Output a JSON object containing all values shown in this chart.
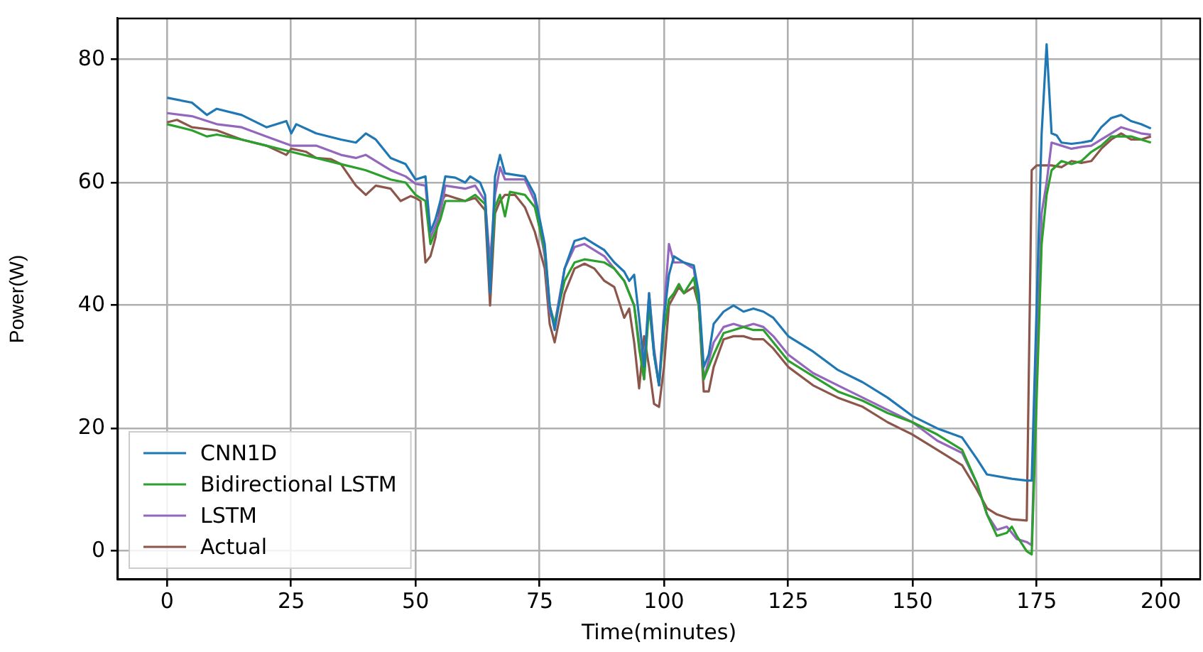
{
  "chart_data": {
    "type": "line",
    "xlabel": "Time(minutes)",
    "ylabel": "Power(W)",
    "xlim": [
      -9.9,
      207.9
    ],
    "ylim": [
      -4.6,
      86.7
    ],
    "xticks": [
      0,
      25,
      50,
      75,
      100,
      125,
      150,
      175,
      200
    ],
    "yticks": [
      0,
      20,
      40,
      60,
      80
    ],
    "grid": true,
    "legend": "bottom left",
    "marker": "none",
    "line_style": "solid",
    "series": [
      {
        "name": "CNN1D",
        "color": "#1f77b4",
        "x": [
          0,
          5,
          8,
          10,
          15,
          20,
          24,
          25,
          26,
          30,
          35,
          38,
          40,
          42,
          45,
          48,
          50,
          52,
          53,
          54,
          55,
          56,
          58,
          60,
          61,
          63,
          64,
          65,
          66,
          67,
          68,
          72,
          74,
          76,
          77,
          78,
          80,
          82,
          84,
          86,
          88,
          90,
          92,
          93,
          94,
          95,
          96,
          97,
          98,
          99,
          100,
          101,
          102,
          104,
          106,
          107,
          108,
          109,
          110,
          112,
          114,
          116,
          118,
          120,
          122,
          125,
          130,
          135,
          140,
          145,
          150,
          155,
          160,
          163,
          165,
          170,
          173,
          174,
          175,
          176,
          177,
          178,
          179,
          180,
          182,
          184,
          186,
          188,
          190,
          192,
          194,
          196,
          198
        ],
        "values": [
          73.8,
          73,
          71,
          72,
          71,
          69,
          70,
          68,
          69.5,
          68,
          67,
          66.5,
          68,
          67,
          64,
          63,
          60.5,
          61,
          52,
          54,
          57,
          61,
          60.8,
          60,
          61,
          60,
          58,
          42,
          61,
          64.5,
          61.5,
          61,
          58,
          50,
          40,
          36,
          46,
          50.5,
          51,
          50,
          49,
          47,
          45.5,
          44,
          45,
          38,
          30,
          42,
          32,
          27,
          38,
          45,
          48,
          47,
          46.5,
          42,
          30,
          32,
          37,
          39,
          40,
          39,
          39.5,
          39,
          38,
          35,
          32.5,
          29.5,
          27.5,
          25,
          22,
          20,
          18.5,
          15,
          12.5,
          11.8,
          11.5,
          11.5,
          40,
          68,
          82.5,
          68,
          67.7,
          66.5,
          66.3,
          66.5,
          66.8,
          69,
          70.5,
          71,
          70,
          69.5,
          68.8
        ]
      },
      {
        "name": "Bidirectional LSTM",
        "color": "#2ca02c",
        "x": [
          0,
          5,
          8,
          10,
          15,
          20,
          25,
          30,
          35,
          40,
          45,
          48,
          50,
          52,
          53,
          54,
          55,
          56,
          60,
          62,
          64,
          65,
          66,
          67,
          68,
          69,
          72,
          74,
          76,
          77,
          78,
          80,
          82,
          84,
          88,
          90,
          92,
          94,
          95,
          96,
          97,
          98,
          99,
          100,
          101,
          102,
          103,
          104,
          106,
          107,
          108,
          110,
          112,
          114,
          116,
          118,
          120,
          122,
          125,
          130,
          135,
          140,
          145,
          150,
          155,
          160,
          163,
          165,
          167,
          169,
          170,
          171,
          173,
          174,
          175,
          176,
          177,
          178,
          180,
          182,
          184,
          186,
          188,
          190,
          192,
          194,
          196,
          198
        ],
        "values": [
          69.5,
          68.5,
          67.5,
          67.8,
          67,
          66,
          65,
          64,
          63,
          62,
          60.5,
          60,
          58,
          57,
          50,
          52,
          54,
          57,
          57,
          58,
          56.5,
          44,
          56,
          58,
          54.5,
          58.5,
          58,
          56,
          49,
          40,
          37,
          44,
          47,
          47.5,
          47,
          46,
          44,
          40,
          33,
          28,
          40,
          32,
          27,
          36,
          41,
          42,
          43.5,
          42,
          44.5,
          40,
          28,
          32,
          35.5,
          36,
          36.5,
          36,
          36,
          34,
          31,
          28.5,
          26,
          24.5,
          22.5,
          21,
          19,
          16.5,
          11,
          6,
          2.5,
          3,
          4,
          2.5,
          0,
          -0.5,
          25,
          50,
          58,
          62,
          63.5,
          63,
          63.5,
          65,
          66,
          67.5,
          67.5,
          67.5,
          67,
          66.5
        ]
      },
      {
        "name": "LSTM",
        "color": "#9467bd",
        "x": [
          0,
          5,
          10,
          15,
          20,
          25,
          30,
          35,
          38,
          40,
          45,
          48,
          50,
          52,
          53,
          54,
          55,
          56,
          60,
          62,
          64,
          65,
          66,
          67,
          68,
          72,
          74,
          76,
          77,
          78,
          80,
          82,
          84,
          88,
          90,
          92,
          94,
          95,
          96,
          97,
          98,
          99,
          100,
          101,
          102,
          104,
          106,
          107,
          108,
          110,
          112,
          114,
          116,
          118,
          120,
          122,
          125,
          130,
          135,
          140,
          145,
          150,
          155,
          160,
          163,
          165,
          167,
          169,
          171,
          173,
          174,
          175,
          176,
          177,
          178,
          180,
          182,
          184,
          186,
          188,
          190,
          192,
          194,
          196,
          198
        ],
        "values": [
          71.3,
          70.8,
          69.5,
          69,
          67.5,
          66,
          66,
          64.5,
          64,
          64.5,
          62,
          61,
          59.8,
          59.5,
          51,
          53,
          55,
          59.5,
          59,
          59.5,
          57,
          47,
          58,
          62.5,
          60.5,
          60.5,
          57,
          48,
          39,
          37,
          46,
          49.5,
          50,
          48,
          46,
          44,
          40,
          34,
          28,
          42,
          33,
          27,
          39,
          50,
          47,
          47,
          46,
          40,
          28,
          34,
          36.5,
          37,
          36.5,
          37,
          36.5,
          35,
          32,
          29,
          27,
          25,
          23,
          21,
          18,
          16,
          11,
          6,
          3.5,
          4,
          2,
          1.5,
          1,
          30,
          55,
          60,
          66.5,
          66,
          65.5,
          65.8,
          66,
          67,
          68,
          69,
          68.5,
          68,
          67.8
        ]
      },
      {
        "name": "Actual",
        "color": "#8c564b",
        "x": [
          0,
          2,
          5,
          10,
          15,
          20,
          24,
          25,
          28,
          30,
          33,
          35,
          38,
          40,
          42,
          45,
          47,
          49,
          50,
          51,
          52,
          53,
          54,
          55,
          56,
          58,
          60,
          62,
          64,
          65,
          66,
          67,
          68,
          70,
          72,
          74,
          76,
          77,
          78,
          80,
          82,
          84,
          86,
          88,
          90,
          92,
          93,
          94,
          95,
          96,
          97,
          98,
          99,
          100,
          101,
          103,
          104,
          106,
          107,
          108,
          109,
          110,
          112,
          114,
          116,
          118,
          120,
          122,
          125,
          130,
          135,
          140,
          145,
          150,
          155,
          160,
          163,
          165,
          167,
          170,
          173,
          174,
          175,
          178,
          180,
          182,
          184,
          186,
          188,
          190,
          192,
          194,
          196,
          198
        ],
        "values": [
          69.8,
          70.2,
          69,
          68.5,
          67,
          66,
          64.5,
          65.5,
          65,
          64,
          63.8,
          63,
          59.5,
          58,
          59.5,
          59,
          57,
          57.8,
          57.5,
          57,
          47,
          48,
          51,
          56.5,
          58,
          57.5,
          57,
          57.5,
          55.5,
          40,
          55,
          57,
          58,
          58,
          56,
          52,
          46,
          37,
          34,
          42,
          46,
          46.8,
          46,
          44,
          43,
          38,
          39.5,
          34,
          26.5,
          35,
          30,
          24,
          23.5,
          30,
          40,
          43,
          42,
          43,
          40,
          26,
          26,
          30,
          34.5,
          35,
          35,
          34.5,
          34.5,
          33,
          30,
          27,
          25,
          23.5,
          21,
          19,
          16.5,
          14,
          10,
          7,
          6,
          5.2,
          5,
          62,
          62.8,
          62.8,
          62.5,
          63.5,
          63.2,
          63.5,
          65.5,
          67,
          68,
          67,
          67,
          67.5
        ]
      }
    ]
  }
}
